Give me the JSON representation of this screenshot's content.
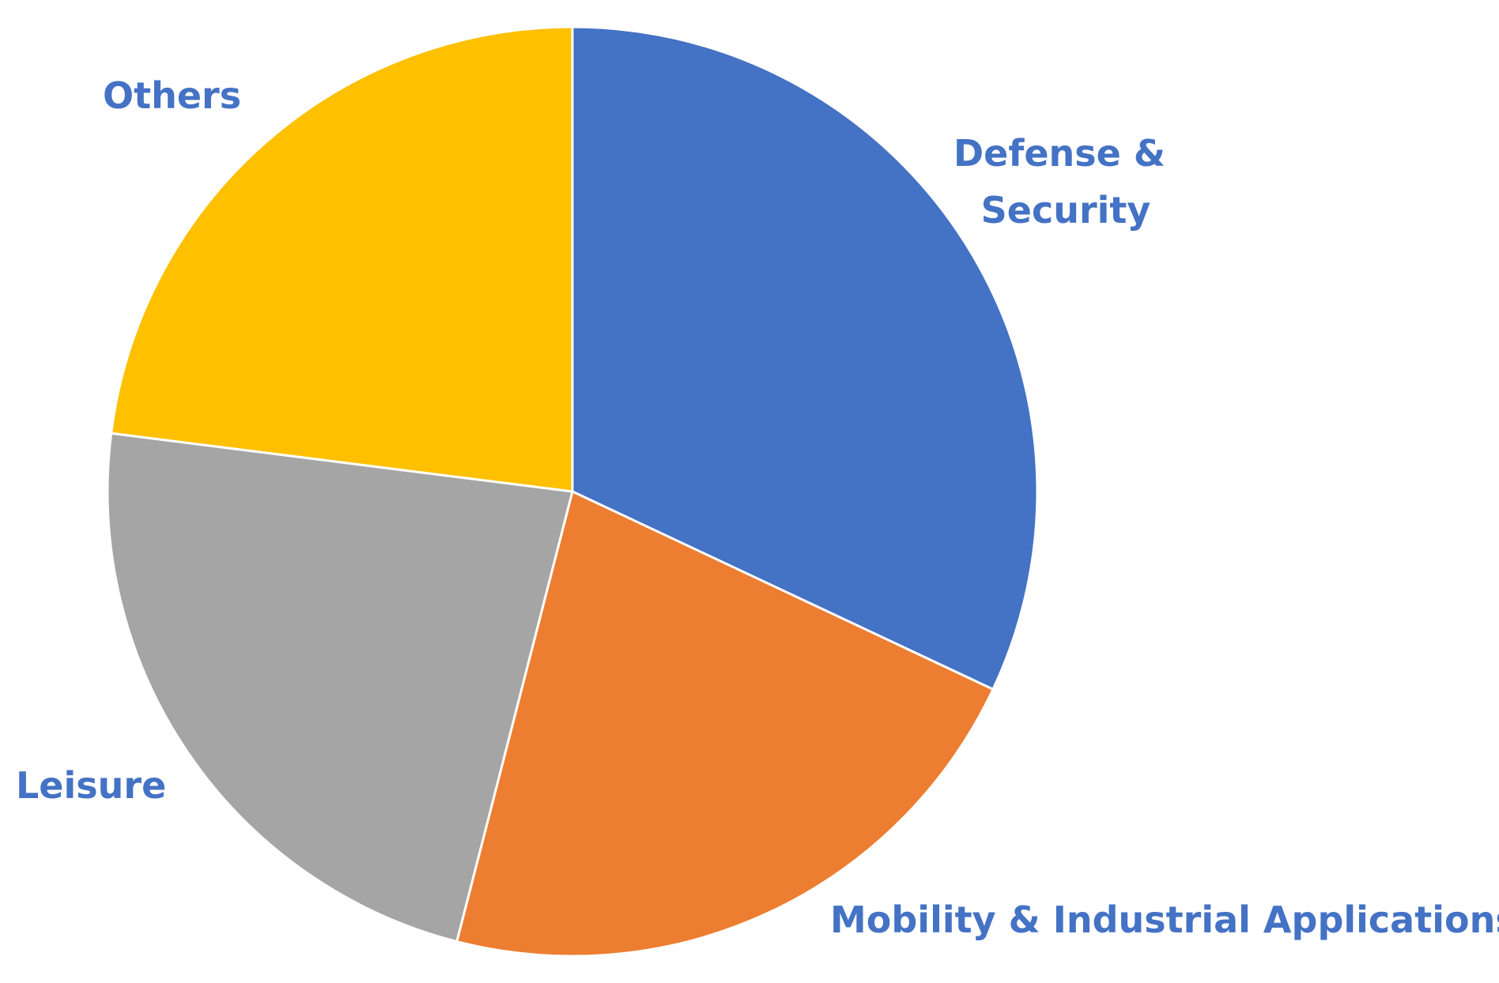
{
  "chart_data": {
    "type": "pie",
    "start_angle_deg": 0,
    "direction": "clockwise",
    "label_color": "#4472C4",
    "slices": [
      {
        "label": "Defense & Security",
        "label_lines": [
          "Defense &",
          "Security"
        ],
        "value": 32,
        "color": "#4472C4"
      },
      {
        "label": "Mobility & Industrial Applications",
        "label_lines": [
          "Mobility & Industrial Applications"
        ],
        "value": 22,
        "color": "#ED7D31"
      },
      {
        "label": "Leisure",
        "label_lines": [
          "Leisure"
        ],
        "value": 23,
        "color": "#A5A5A5"
      },
      {
        "label": "Others",
        "label_lines": [
          "Others"
        ],
        "value": 23,
        "color": "#FFC000"
      }
    ]
  }
}
